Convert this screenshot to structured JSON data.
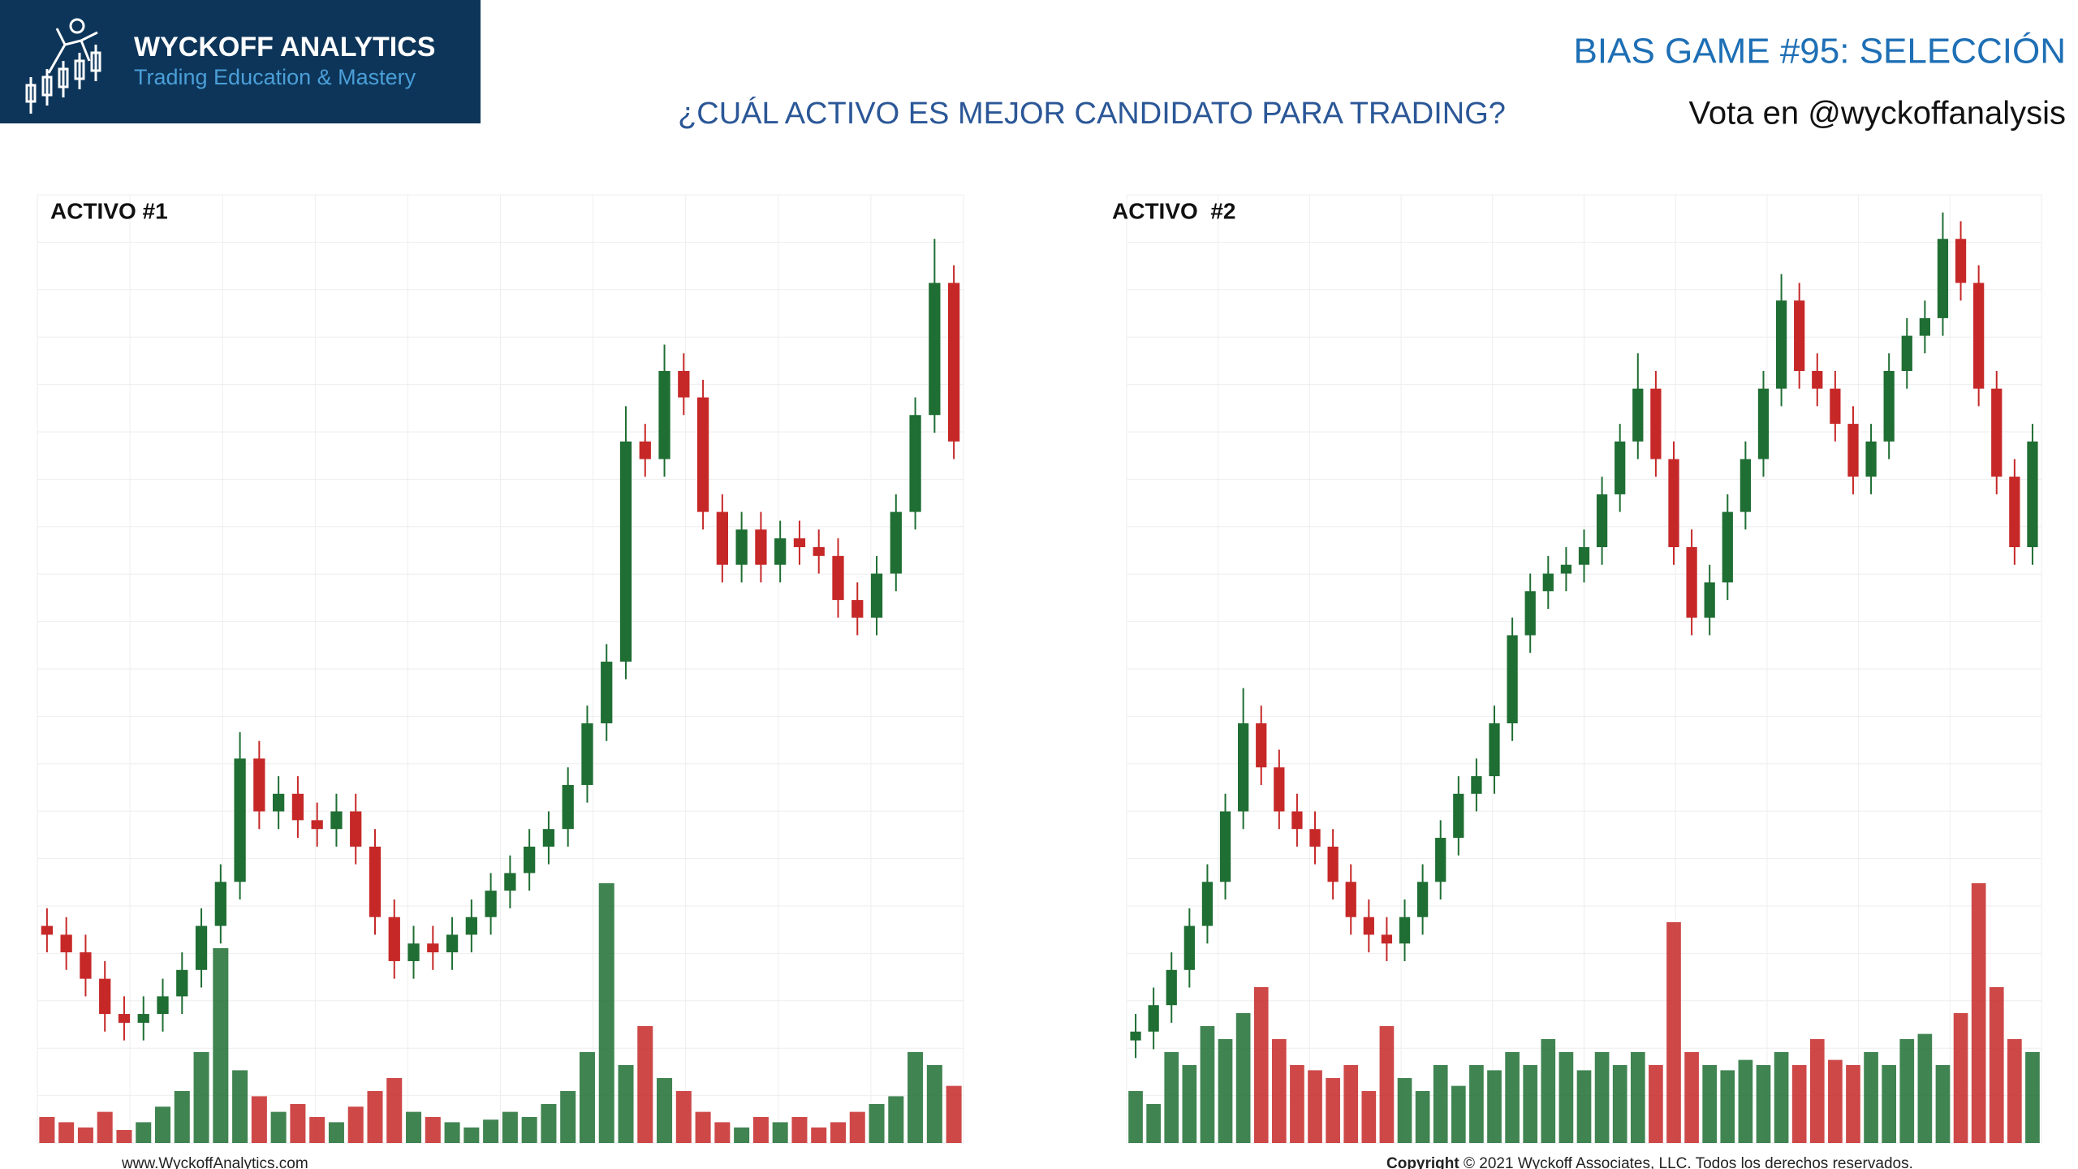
{
  "header": {
    "brand": "WYCKOFF ANALYTICS",
    "tagline": "Trading Education & Mastery",
    "title": "BIAS GAME #95: SELECCIÓN",
    "subtitle": "¿CUÁL ACTIVO ES MEJOR CANDIDATO PARA TRADING?",
    "vote": "Vota en @wyckoffanalysis"
  },
  "footer": {
    "website": "www.WyckoffAnalytics.com",
    "copyright_label": "Copyright",
    "copyright_text": "© 2021 Wyckoff Associates, LLC. Todos los derechos reservados."
  },
  "chart_data": [
    {
      "type": "candlestick",
      "title": "ACTIVO #1",
      "up_color": "#1f6e33",
      "down_color": "#c62828",
      "ylim": [
        0,
        100
      ],
      "y2lim": [
        0,
        100
      ],
      "open": [
        17,
        16,
        14,
        11,
        7,
        6,
        7,
        9,
        12,
        17,
        22,
        36,
        30,
        32,
        29,
        28,
        30,
        26,
        18,
        13,
        15,
        14,
        16,
        18,
        21,
        23,
        26,
        28,
        33,
        40,
        47,
        72,
        70,
        80,
        77,
        64,
        58,
        62,
        58,
        61,
        60,
        59,
        54,
        52,
        57,
        64,
        75,
        90
      ],
      "high": [
        19,
        18,
        16,
        13,
        9,
        9,
        11,
        14,
        19,
        24,
        39,
        38,
        34,
        34,
        31,
        32,
        32,
        28,
        20,
        17,
        17,
        18,
        20,
        23,
        25,
        28,
        30,
        35,
        42,
        49,
        76,
        74,
        83,
        82,
        79,
        66,
        64,
        64,
        63,
        63,
        62,
        61,
        56,
        59,
        66,
        77,
        95,
        92
      ],
      "low": [
        14,
        12,
        9,
        5,
        4,
        4,
        5,
        7,
        10,
        15,
        20,
        28,
        28,
        27,
        26,
        26,
        24,
        16,
        11,
        11,
        12,
        12,
        14,
        16,
        19,
        21,
        24,
        26,
        31,
        38,
        45,
        68,
        68,
        75,
        62,
        56,
        56,
        56,
        56,
        58,
        57,
        52,
        50,
        50,
        55,
        62,
        73,
        70
      ],
      "close": [
        16,
        14,
        11,
        7,
        6,
        7,
        9,
        12,
        17,
        22,
        36,
        30,
        32,
        29,
        28,
        30,
        26,
        18,
        13,
        15,
        14,
        16,
        18,
        21,
        23,
        26,
        28,
        33,
        40,
        47,
        72,
        70,
        80,
        77,
        64,
        58,
        62,
        58,
        61,
        60,
        59,
        54,
        52,
        57,
        64,
        75,
        90,
        72
      ],
      "volume": [
        10,
        8,
        6,
        12,
        5,
        8,
        14,
        20,
        35,
        75,
        28,
        18,
        12,
        15,
        10,
        8,
        14,
        20,
        25,
        12,
        10,
        8,
        6,
        9,
        12,
        10,
        15,
        20,
        35,
        100,
        30,
        45,
        25,
        20,
        12,
        8,
        6,
        10,
        8,
        10,
        6,
        8,
        12,
        15,
        18,
        35,
        30,
        22
      ]
    },
    {
      "type": "candlestick",
      "title": "ACTIVO  #2",
      "up_color": "#1f6e33",
      "down_color": "#c62828",
      "ylim": [
        0,
        100
      ],
      "y2lim": [
        0,
        100
      ],
      "open": [
        4,
        5,
        8,
        12,
        17,
        22,
        30,
        40,
        35,
        30,
        28,
        26,
        22,
        18,
        16,
        15,
        18,
        22,
        27,
        32,
        34,
        40,
        50,
        55,
        57,
        58,
        60,
        66,
        72,
        78,
        70,
        60,
        52,
        56,
        64,
        70,
        78,
        88,
        80,
        78,
        74,
        68,
        72,
        80,
        84,
        86,
        95,
        90,
        78,
        68,
        60
      ],
      "high": [
        7,
        10,
        14,
        19,
        24,
        32,
        44,
        42,
        37,
        32,
        30,
        28,
        24,
        20,
        18,
        20,
        24,
        29,
        34,
        36,
        42,
        52,
        57,
        59,
        60,
        62,
        68,
        74,
        82,
        80,
        72,
        62,
        58,
        66,
        72,
        80,
        91,
        90,
        82,
        80,
        76,
        74,
        82,
        86,
        88,
        98,
        97,
        92,
        80,
        70,
        74
      ],
      "low": [
        2,
        3,
        6,
        10,
        15,
        20,
        28,
        33,
        28,
        26,
        24,
        20,
        16,
        14,
        13,
        13,
        16,
        20,
        25,
        30,
        32,
        38,
        48,
        53,
        55,
        56,
        58,
        64,
        70,
        68,
        58,
        50,
        50,
        54,
        62,
        68,
        76,
        78,
        76,
        72,
        66,
        66,
        70,
        78,
        82,
        84,
        88,
        76,
        66,
        58,
        58
      ],
      "close": [
        5,
        8,
        12,
        17,
        22,
        30,
        40,
        35,
        30,
        28,
        26,
        22,
        18,
        16,
        15,
        18,
        22,
        27,
        32,
        34,
        40,
        50,
        55,
        57,
        58,
        60,
        66,
        72,
        78,
        70,
        60,
        52,
        56,
        64,
        70,
        78,
        88,
        80,
        78,
        74,
        68,
        72,
        80,
        84,
        86,
        95,
        90,
        78,
        68,
        60,
        72
      ],
      "volume": [
        20,
        15,
        35,
        30,
        45,
        40,
        50,
        60,
        40,
        30,
        28,
        25,
        30,
        20,
        45,
        25,
        20,
        30,
        22,
        30,
        28,
        35,
        30,
        40,
        35,
        28,
        35,
        30,
        35,
        30,
        85,
        35,
        30,
        28,
        32,
        30,
        35,
        30,
        40,
        32,
        30,
        35,
        30,
        40,
        42,
        30,
        50,
        100,
        60,
        40,
        35
      ]
    }
  ]
}
